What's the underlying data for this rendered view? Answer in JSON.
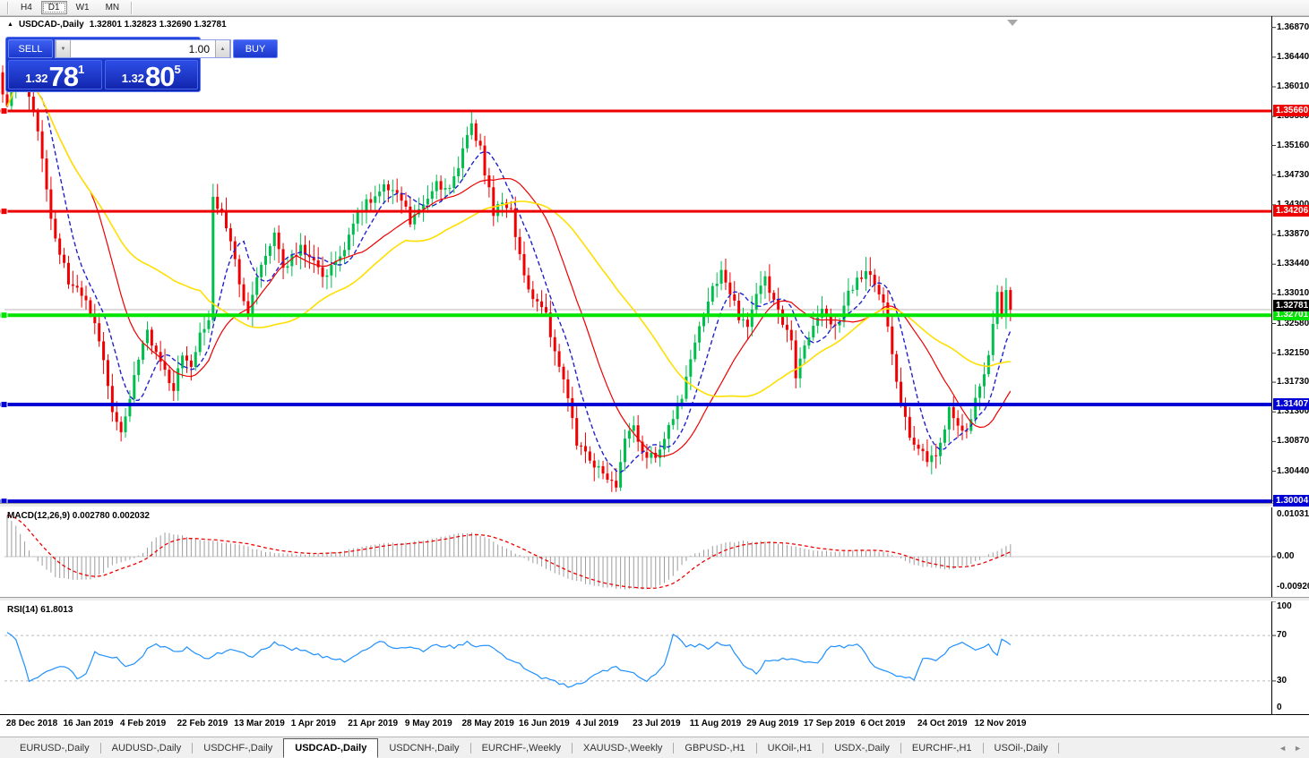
{
  "toolbar": {
    "timeframes": [
      {
        "label": "H4",
        "active": false
      },
      {
        "label": "D1",
        "active": true
      },
      {
        "label": "W1",
        "active": false
      },
      {
        "label": "MN",
        "active": false
      }
    ]
  },
  "chart": {
    "collapse_icon": "▲",
    "title": "USDCAD-,Daily",
    "ohlc": "1.32801 1.32823 1.32690 1.32781"
  },
  "trade_panel": {
    "sell_label": "SELL",
    "buy_label": "BUY",
    "volume": "1.00",
    "spin_down": "▼",
    "spin_up": "▲",
    "sell_small": "1.32",
    "sell_big": "78",
    "sell_sup": "1",
    "buy_small": "1.32",
    "buy_big": "80",
    "buy_sup": "5"
  },
  "macd_panel": {
    "label": "MACD(12,26,9) 0.002780 0.002032",
    "axis_top": "0.010311",
    "axis_zero": "0.00",
    "axis_bottom": "-0.009203"
  },
  "rsi_panel": {
    "label": "RSI(14) 61.8013",
    "axis": [
      "100",
      "70",
      "30",
      "0"
    ]
  },
  "tabs": {
    "active_index": 3,
    "scroll_left": "◄",
    "scroll_right": "►",
    "items": [
      "EURUSD-,Daily",
      "AUDUSD-,Daily",
      "USDCHF-,Daily",
      "USDCAD-,Daily",
      "USDCNH-,Daily",
      "EURCHF-,Weekly",
      "XAUUSD-,Weekly",
      "GBPUSD-,H1",
      "UKOil-,H1",
      "USDX-,Daily",
      "EURCHF-,H1",
      "USOil-,Daily"
    ]
  },
  "colors": {
    "bull": "#00be4e",
    "bear": "#f00000",
    "ma_fast": "#2222cc",
    "ma_mid": "#ee0000",
    "ma_slow": "#ffdf00",
    "macd_hist": "#9c9c9c",
    "macd_signal": "#ee0000",
    "rsi": "#1e90ff",
    "current_line": "#b8b8b8",
    "hline_red": "#ee0000",
    "hline_green": "#00e400",
    "hline_blue": "#0000d4",
    "current_box": "#000000"
  },
  "chart_data": {
    "type": "candlestick",
    "symbol": "USDCAD-,Daily",
    "displayed_ohlc": {
      "open": "1.32801",
      "high": "1.32823",
      "low": "1.32690",
      "close": "1.32781"
    },
    "bars": 230,
    "pre_candle": {
      "o": 1.3622,
      "h": 1.3632,
      "l": 1.3578,
      "c": 1.359
    },
    "last_close": 1.32781,
    "price_axis_ticks": [
      "1.36870",
      "1.36440",
      "1.36010",
      "1.35580",
      "1.35160",
      "1.34730",
      "1.34300",
      "1.33870",
      "1.33440",
      "1.33010",
      "1.32580",
      "1.32150",
      "1.31730",
      "1.31300",
      "1.30870",
      "1.30440",
      "1.30010"
    ],
    "hlines": [
      {
        "price": 1.3566,
        "label": "1.35660",
        "color": "#ee0000",
        "lw": 3
      },
      {
        "price": 1.34206,
        "label": "1.34206",
        "color": "#ee0000",
        "lw": 3
      },
      {
        "price": 1.32701,
        "label": "1.32701",
        "color": "#00e400",
        "lw": 4
      },
      {
        "price": 1.31407,
        "label": "1.31407",
        "color": "#0000d4",
        "lw": 4
      },
      {
        "price": 1.30004,
        "label": "1.30004",
        "color": "#0000d4",
        "lw": 4
      }
    ],
    "current_price": {
      "value": 1.32781,
      "label": "1.32781"
    },
    "ma_lines": [
      {
        "period": 8,
        "color": "#2222cc",
        "dash": "5,3",
        "w": 1.4
      },
      {
        "period": 20,
        "color": "#ee0000",
        "dash": "",
        "w": 1.2
      },
      {
        "period": 45,
        "color": "#ffdf00",
        "dash": "",
        "w": 1.6
      }
    ],
    "close_waypoints": [
      [
        0,
        1.357
      ],
      [
        1,
        1.36
      ],
      [
        2,
        1.3645
      ],
      [
        4,
        1.361
      ],
      [
        6,
        1.356
      ],
      [
        8,
        1.35
      ],
      [
        10,
        1.3405
      ],
      [
        12,
        1.336
      ],
      [
        14,
        1.332
      ],
      [
        16,
        1.3305
      ],
      [
        18,
        1.329
      ],
      [
        20,
        1.3265
      ],
      [
        22,
        1.321
      ],
      [
        24,
        1.3125
      ],
      [
        26,
        1.3095
      ],
      [
        28,
        1.3145
      ],
      [
        30,
        1.321
      ],
      [
        32,
        1.3248
      ],
      [
        34,
        1.3215
      ],
      [
        36,
        1.3185
      ],
      [
        38,
        1.3165
      ],
      [
        40,
        1.321
      ],
      [
        42,
        1.3198
      ],
      [
        44,
        1.324
      ],
      [
        46,
        1.3268
      ],
      [
        47,
        1.3438
      ],
      [
        49,
        1.342
      ],
      [
        51,
        1.338
      ],
      [
        53,
        1.332
      ],
      [
        55,
        1.3268
      ],
      [
        57,
        1.332
      ],
      [
        59,
        1.336
      ],
      [
        61,
        1.3385
      ],
      [
        63,
        1.334
      ],
      [
        65,
        1.3352
      ],
      [
        67,
        1.3368
      ],
      [
        70,
        1.3345
      ],
      [
        72,
        1.3328
      ],
      [
        74,
        1.3338
      ],
      [
        76,
        1.336
      ],
      [
        78,
        1.3382
      ],
      [
        80,
        1.3415
      ],
      [
        82,
        1.3432
      ],
      [
        84,
        1.3442
      ],
      [
        86,
        1.3455
      ],
      [
        88,
        1.3448
      ],
      [
        90,
        1.344
      ],
      [
        92,
        1.3405
      ],
      [
        94,
        1.3418
      ],
      [
        96,
        1.344
      ],
      [
        98,
        1.346
      ],
      [
        100,
        1.3452
      ],
      [
        102,
        1.3468
      ],
      [
        104,
        1.351
      ],
      [
        106,
        1.3545
      ],
      [
        108,
        1.351
      ],
      [
        109,
        1.3478
      ],
      [
        111,
        1.342
      ],
      [
        113,
        1.3435
      ],
      [
        115,
        1.342
      ],
      [
        117,
        1.3355
      ],
      [
        119,
        1.331
      ],
      [
        121,
        1.3285
      ],
      [
        123,
        1.3272
      ],
      [
        125,
        1.3215
      ],
      [
        127,
        1.3172
      ],
      [
        128,
        1.3145
      ],
      [
        130,
        1.3085
      ],
      [
        132,
        1.307
      ],
      [
        133,
        1.3062
      ],
      [
        135,
        1.3045
      ],
      [
        137,
        1.303
      ],
      [
        139,
        1.3022
      ],
      [
        141,
        1.3085
      ],
      [
        143,
        1.3108
      ],
      [
        145,
        1.3072
      ],
      [
        148,
        1.3062
      ],
      [
        150,
        1.3092
      ],
      [
        152,
        1.3118
      ],
      [
        154,
        1.3155
      ],
      [
        156,
        1.32
      ],
      [
        158,
        1.3252
      ],
      [
        160,
        1.3292
      ],
      [
        162,
        1.332
      ],
      [
        163,
        1.3332
      ],
      [
        165,
        1.3305
      ],
      [
        167,
        1.3268
      ],
      [
        169,
        1.3255
      ],
      [
        171,
        1.3298
      ],
      [
        173,
        1.3322
      ],
      [
        175,
        1.329
      ],
      [
        177,
        1.3255
      ],
      [
        179,
        1.3232
      ],
      [
        180,
        1.3185
      ],
      [
        182,
        1.3222
      ],
      [
        184,
        1.3256
      ],
      [
        186,
        1.3282
      ],
      [
        188,
        1.326
      ],
      [
        190,
        1.3262
      ],
      [
        192,
        1.33
      ],
      [
        194,
        1.3322
      ],
      [
        196,
        1.3335
      ],
      [
        198,
        1.332
      ],
      [
        200,
        1.3288
      ],
      [
        202,
        1.321
      ],
      [
        204,
        1.3135
      ],
      [
        206,
        1.3098
      ],
      [
        208,
        1.3075
      ],
      [
        210,
        1.3062
      ],
      [
        212,
        1.3072
      ],
      [
        214,
        1.3108
      ],
      [
        215,
        1.3132
      ],
      [
        217,
        1.3115
      ],
      [
        219,
        1.3102
      ],
      [
        221,
        1.3148
      ],
      [
        223,
        1.318
      ],
      [
        225,
        1.3252
      ],
      [
        226,
        1.3305
      ],
      [
        227,
        1.327
      ],
      [
        228,
        1.3304
      ],
      [
        229,
        1.32781
      ]
    ],
    "macd": {
      "params": "12,26,9",
      "value": "0.002780",
      "signal_value": "0.002032",
      "hist_waypoints": [
        [
          0,
          0.0094
        ],
        [
          2,
          0.007
        ],
        [
          4,
          0.0035
        ],
        [
          5,
          0.0015
        ],
        [
          6,
          0.0
        ],
        [
          8,
          -0.002
        ],
        [
          11,
          -0.0045
        ],
        [
          14,
          -0.005
        ],
        [
          17,
          -0.0052
        ],
        [
          20,
          -0.005
        ],
        [
          22,
          -0.0035
        ],
        [
          24,
          -0.0018
        ],
        [
          27,
          -0.001
        ],
        [
          29,
          -0.0005
        ],
        [
          31,
          0.0008
        ],
        [
          33,
          0.0035
        ],
        [
          36,
          0.0055
        ],
        [
          39,
          0.005
        ],
        [
          42,
          0.0042
        ],
        [
          45,
          0.0038
        ],
        [
          49,
          0.0032
        ],
        [
          52,
          0.0028
        ],
        [
          55,
          0.0022
        ],
        [
          58,
          0.0012
        ],
        [
          61,
          0.0008
        ],
        [
          64,
          0.0006
        ],
        [
          68,
          0.0005
        ],
        [
          72,
          0.0008
        ],
        [
          76,
          0.0012
        ],
        [
          80,
          0.002
        ],
        [
          84,
          0.0028
        ],
        [
          88,
          0.003
        ],
        [
          92,
          0.0032
        ],
        [
          96,
          0.0038
        ],
        [
          99,
          0.0045
        ],
        [
          103,
          0.0052
        ],
        [
          106,
          0.0055
        ],
        [
          110,
          0.004
        ],
        [
          113,
          0.0022
        ],
        [
          116,
          0.0008
        ],
        [
          119,
          -0.0008
        ],
        [
          123,
          -0.0028
        ],
        [
          127,
          -0.0045
        ],
        [
          131,
          -0.0058
        ],
        [
          135,
          -0.0068
        ],
        [
          140,
          -0.0072
        ],
        [
          144,
          -0.0074
        ],
        [
          147,
          -0.0072
        ],
        [
          150,
          -0.006
        ],
        [
          152,
          -0.0045
        ],
        [
          154,
          -0.002
        ],
        [
          156,
          0.0002
        ],
        [
          159,
          0.0015
        ],
        [
          163,
          0.003
        ],
        [
          168,
          0.0035
        ],
        [
          173,
          0.0034
        ],
        [
          178,
          0.0028
        ],
        [
          182,
          0.0018
        ],
        [
          187,
          0.0012
        ],
        [
          191,
          0.0012
        ],
        [
          195,
          0.0016
        ],
        [
          199,
          0.0012
        ],
        [
          203,
          0.0
        ],
        [
          207,
          -0.0018
        ],
        [
          211,
          -0.0026
        ],
        [
          215,
          -0.0028
        ],
        [
          218,
          -0.0022
        ],
        [
          221,
          -0.0012
        ],
        [
          224,
          0.0006
        ],
        [
          227,
          0.0018
        ],
        [
          229,
          0.0028
        ]
      ],
      "axis": {
        "top": "0.010311",
        "zero": "0.00",
        "bottom": "-0.009203"
      }
    },
    "rsi": {
      "period": 14,
      "value": "61.8013",
      "levels": [
        30,
        70
      ],
      "waypoints": [
        [
          0,
          72
        ],
        [
          2,
          66
        ],
        [
          3,
          55
        ],
        [
          5,
          31
        ],
        [
          8,
          36
        ],
        [
          12,
          44
        ],
        [
          14,
          40
        ],
        [
          16,
          33
        ],
        [
          18,
          36
        ],
        [
          20,
          55
        ],
        [
          23,
          50
        ],
        [
          25,
          52
        ],
        [
          27,
          42
        ],
        [
          30,
          48
        ],
        [
          33,
          62
        ],
        [
          36,
          60
        ],
        [
          39,
          55
        ],
        [
          41,
          60
        ],
        [
          44,
          52
        ],
        [
          46,
          50
        ],
        [
          49,
          55
        ],
        [
          52,
          57
        ],
        [
          56,
          52
        ],
        [
          61,
          63
        ],
        [
          65,
          58
        ],
        [
          68,
          57
        ],
        [
          72,
          52
        ],
        [
          77,
          48
        ],
        [
          82,
          58
        ],
        [
          85,
          65
        ],
        [
          89,
          58
        ],
        [
          92,
          60
        ],
        [
          95,
          57
        ],
        [
          98,
          62
        ],
        [
          102,
          60
        ],
        [
          105,
          64
        ],
        [
          108,
          60
        ],
        [
          110,
          62
        ],
        [
          112,
          55
        ],
        [
          115,
          48
        ],
        [
          117,
          45
        ],
        [
          119,
          38
        ],
        [
          122,
          33
        ],
        [
          124,
          30
        ],
        [
          126,
          28
        ],
        [
          128,
          25
        ],
        [
          130,
          27
        ],
        [
          132,
          30
        ],
        [
          134,
          34
        ],
        [
          136,
          38
        ],
        [
          139,
          42
        ],
        [
          141,
          38
        ],
        [
          144,
          35
        ],
        [
          146,
          31
        ],
        [
          148,
          36
        ],
        [
          150,
          45
        ],
        [
          151,
          58
        ],
        [
          152,
          72
        ],
        [
          155,
          60
        ],
        [
          158,
          62
        ],
        [
          160,
          58
        ],
        [
          162,
          63
        ],
        [
          165,
          62
        ],
        [
          168,
          44
        ],
        [
          171,
          37
        ],
        [
          173,
          47
        ],
        [
          176,
          48
        ],
        [
          179,
          51
        ],
        [
          182,
          45
        ],
        [
          185,
          47
        ],
        [
          188,
          60
        ],
        [
          191,
          60
        ],
        [
          194,
          63
        ],
        [
          198,
          42
        ],
        [
          201,
          38
        ],
        [
          204,
          34
        ],
        [
          207,
          31
        ],
        [
          209,
          50
        ],
        [
          212,
          47
        ],
        [
          215,
          58
        ],
        [
          218,
          63
        ],
        [
          221,
          57
        ],
        [
          224,
          62
        ],
        [
          226,
          52
        ],
        [
          227,
          67
        ],
        [
          229,
          61.8
        ]
      ]
    },
    "date_labels": [
      "28 Dec 2018",
      "16 Jan 2019",
      "4 Feb 2019",
      "22 Feb 2019",
      "13 Mar 2019",
      "1 Apr 2019",
      "21 Apr 2019",
      "9 May 2019",
      "28 May 2019",
      "16 Jun 2019",
      "4 Jul 2019",
      "23 Jul 2019",
      "11 Aug 2019",
      "29 Aug 2019",
      "17 Sep 2019",
      "6 Oct 2019",
      "24 Oct 2019",
      "12 Nov 2019"
    ]
  }
}
